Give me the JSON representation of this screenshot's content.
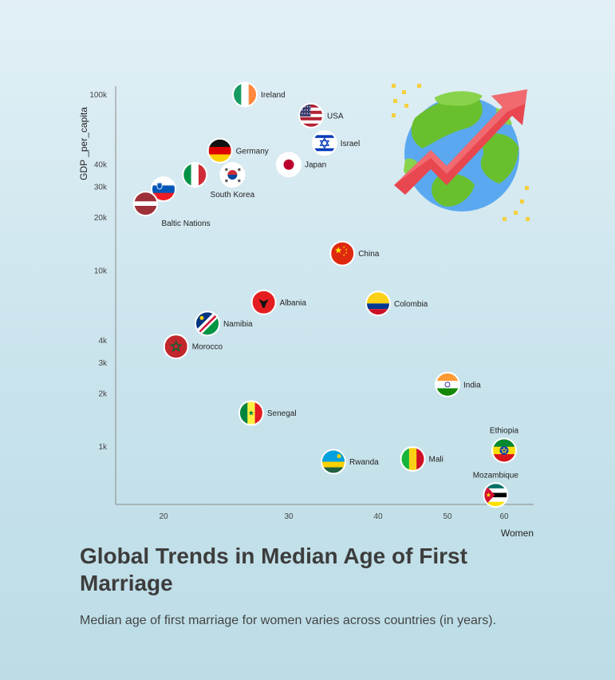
{
  "chart_data": {
    "type": "scatter",
    "title": "Global Trends in Median Age of First Marriage",
    "subtitle": "Median age of first marriage for women varies across countries (in years).",
    "xlabel": "Women",
    "ylabel": "GDP _per_capita",
    "x_ticks": [
      {
        "value": 20,
        "label": "20"
      },
      {
        "value": 30,
        "label": "30"
      },
      {
        "value": 40,
        "label": "40"
      },
      {
        "value": 50,
        "label": "50"
      },
      {
        "value": 60,
        "label": "60"
      }
    ],
    "y_ticks": [
      {
        "value": 1000,
        "label": "1k"
      },
      {
        "value": 2000,
        "label": "2k"
      },
      {
        "value": 3000,
        "label": "3k"
      },
      {
        "value": 4000,
        "label": "4k"
      },
      {
        "value": 10000,
        "label": "10k"
      },
      {
        "value": 20000,
        "label": "20k"
      },
      {
        "value": 30000,
        "label": "30k"
      },
      {
        "value": 40000,
        "label": "40k"
      },
      {
        "value": 100000,
        "label": "100k"
      }
    ],
    "points": [
      {
        "label": "Ireland",
        "x": 26.5,
        "y": 100000,
        "flag": "ireland",
        "label_pos": "right"
      },
      {
        "label": "USA",
        "x": 32.5,
        "y": 76000,
        "flag": "usa",
        "label_pos": "right"
      },
      {
        "label": "Israel",
        "x": 34,
        "y": 53000,
        "flag": "israel",
        "label_pos": "right"
      },
      {
        "label": "Germany",
        "x": 24.5,
        "y": 48000,
        "flag": "germany",
        "label_pos": "right"
      },
      {
        "label": "Japan",
        "x": 30,
        "y": 40000,
        "flag": "japan",
        "label_pos": "right"
      },
      {
        "label": "South Korea",
        "x": 25.5,
        "y": 35000,
        "flag": "south-korea",
        "label_pos": "below"
      },
      {
        "label": "",
        "x": 22.5,
        "y": 35000,
        "flag": "italy",
        "label_pos": "none"
      },
      {
        "label": "",
        "x": 20,
        "y": 29000,
        "flag": "slovenia",
        "label_pos": "none"
      },
      {
        "label": "Baltic Nations",
        "x": 18.5,
        "y": 24000,
        "flag": "latvia",
        "label_pos": "below-right"
      },
      {
        "label": "China",
        "x": 36,
        "y": 12500,
        "flag": "china",
        "label_pos": "right"
      },
      {
        "label": "Albania",
        "x": 28,
        "y": 6600,
        "flag": "albania",
        "label_pos": "right"
      },
      {
        "label": "Colombia",
        "x": 40,
        "y": 6500,
        "flag": "colombia",
        "label_pos": "right"
      },
      {
        "label": "Namibia",
        "x": 23.5,
        "y": 5000,
        "flag": "namibia",
        "label_pos": "right"
      },
      {
        "label": "Morocco",
        "x": 21,
        "y": 3700,
        "flag": "morocco",
        "label_pos": "right"
      },
      {
        "label": "India",
        "x": 50,
        "y": 2250,
        "flag": "india",
        "label_pos": "right"
      },
      {
        "label": "Senegal",
        "x": 27,
        "y": 1550,
        "flag": "senegal",
        "label_pos": "right"
      },
      {
        "label": "Ethiopia",
        "x": 60,
        "y": 950,
        "flag": "ethiopia",
        "label_pos": "above"
      },
      {
        "label": "Mali",
        "x": 45,
        "y": 850,
        "flag": "mali",
        "label_pos": "right"
      },
      {
        "label": "Rwanda",
        "x": 35,
        "y": 820,
        "flag": "rwanda",
        "label_pos": "right"
      },
      {
        "label": "Mozambique",
        "x": 58.5,
        "y": 530,
        "flag": "mozambique",
        "label_pos": "above"
      }
    ],
    "xlim": [
      16,
      62
    ],
    "ylim": [
      470,
      120000
    ],
    "x_scale": "piecewise",
    "y_scale": "log",
    "grid": false,
    "legend": "none",
    "decoration": "globe-with-rising-arrow-icon"
  },
  "colors": {
    "text": "#3d3d3d",
    "axis": "#8a8a8a",
    "globe_ocean": "#5aa9f0",
    "globe_land": "#6abf2e",
    "arrow": "#e8474f",
    "sparkle": "#f3d03e"
  }
}
